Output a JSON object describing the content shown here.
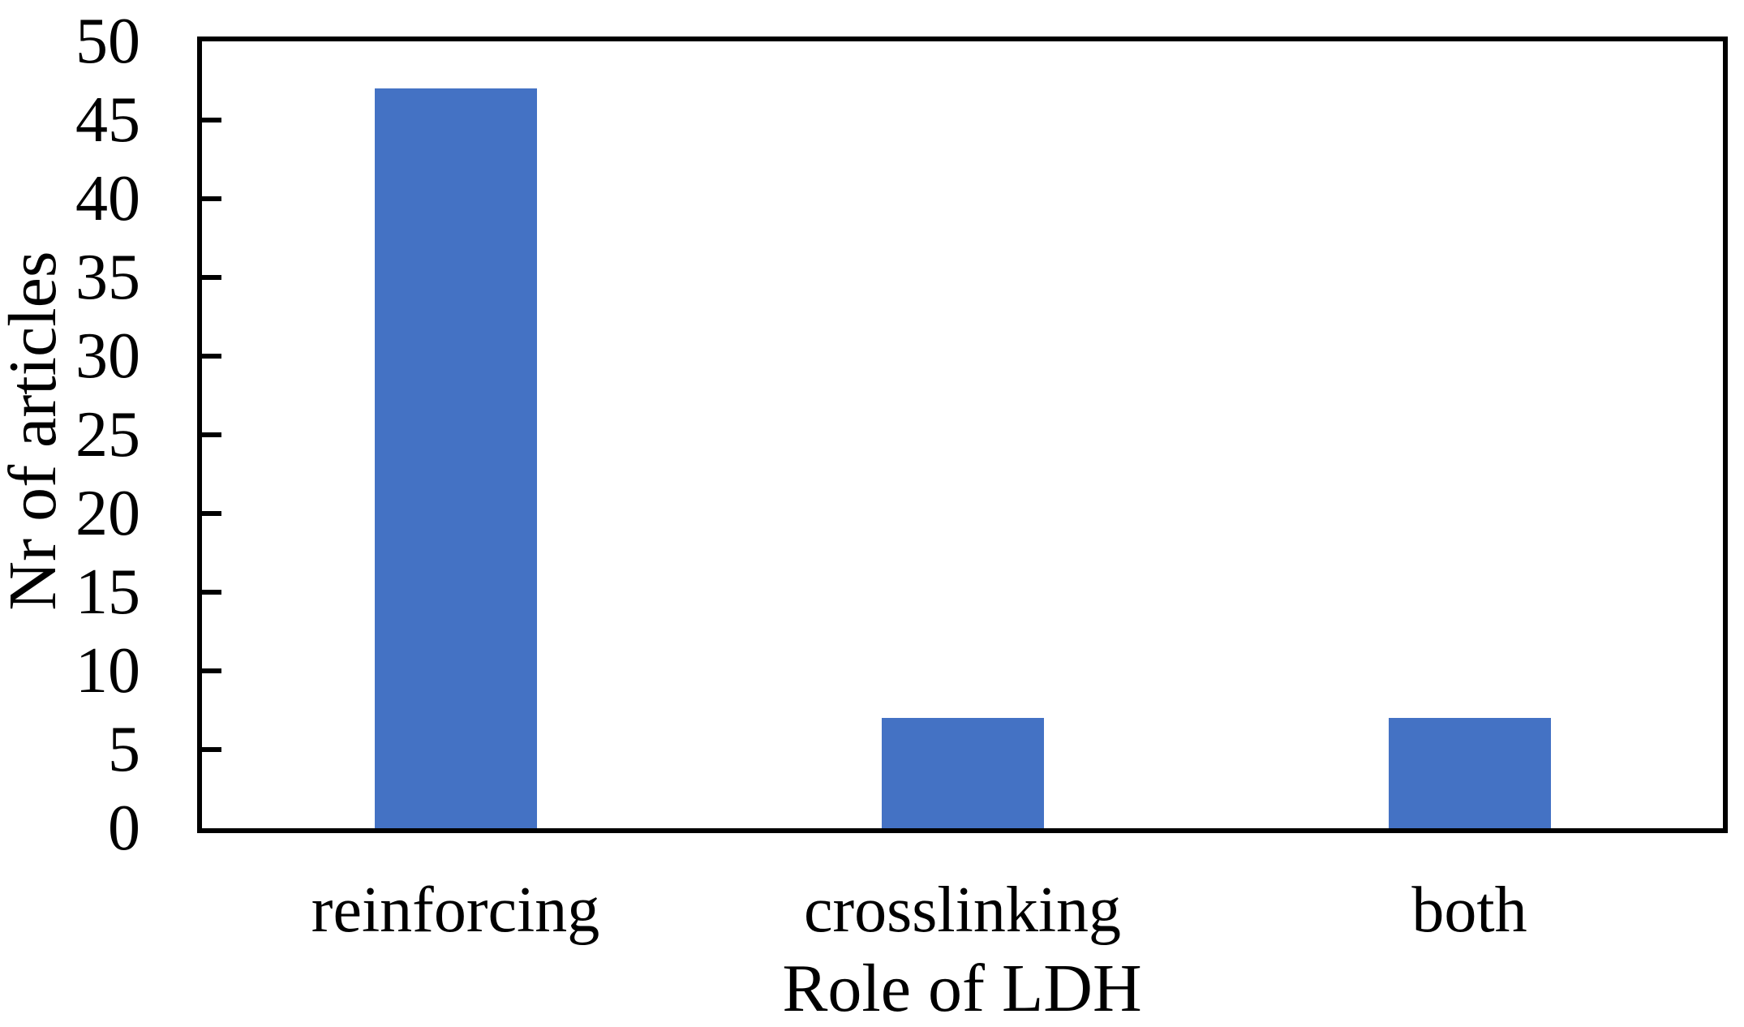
{
  "chart_data": {
    "type": "bar",
    "categories": [
      "reinforcing",
      "crosslinking",
      "both"
    ],
    "values": [
      47,
      7,
      7
    ],
    "title": "",
    "xlabel": "Role of LDH",
    "ylabel": "Nr of articles",
    "ylim": [
      0,
      50
    ],
    "yticks": [
      0,
      5,
      10,
      15,
      20,
      25,
      30,
      35,
      40,
      45,
      50
    ],
    "grid": false,
    "legend": false,
    "colors": {
      "bar": "#4472C4",
      "axis": "#000000",
      "text": "#000000",
      "background": "#FFFFFF"
    }
  }
}
